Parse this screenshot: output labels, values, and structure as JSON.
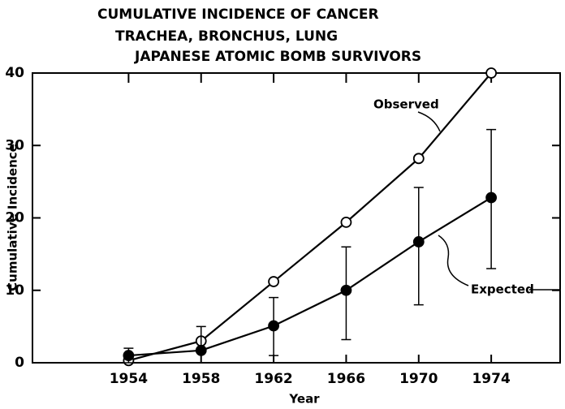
{
  "chart_data": {
    "type": "line",
    "title": [
      "CUMULATIVE  INCIDENCE OF CANCER",
      "TRACHEA, BRONCHUS, LUNG",
      "JAPANESE ATOMIC BOMB SURVIVORS"
    ],
    "x_label": "Year",
    "y_label": "Cumulative Incidence",
    "x": [
      1954,
      1958,
      1962,
      1966,
      1970,
      1974
    ],
    "series": [
      {
        "name": "Observed",
        "color": "#000000",
        "marker": "open",
        "values": [
          0.3,
          3,
          11.2,
          19.4,
          28.2,
          40
        ]
      },
      {
        "name": "Expected",
        "color": "#000000",
        "marker": "filled",
        "values": [
          1,
          1.7,
          5.1,
          10,
          16.7,
          22.8
        ],
        "ci_low": [
          0,
          0,
          1,
          3.2,
          8,
          13
        ],
        "ci_high": [
          2,
          5,
          9,
          16,
          24.2,
          32.2
        ]
      }
    ],
    "xlim": [
      1948.7,
      1977.8
    ],
    "xticks": [
      1954,
      1958,
      1962,
      1966,
      1970,
      1974
    ],
    "ylim": [
      0,
      40
    ],
    "yticks": [
      0,
      10,
      20,
      30,
      40
    ]
  }
}
